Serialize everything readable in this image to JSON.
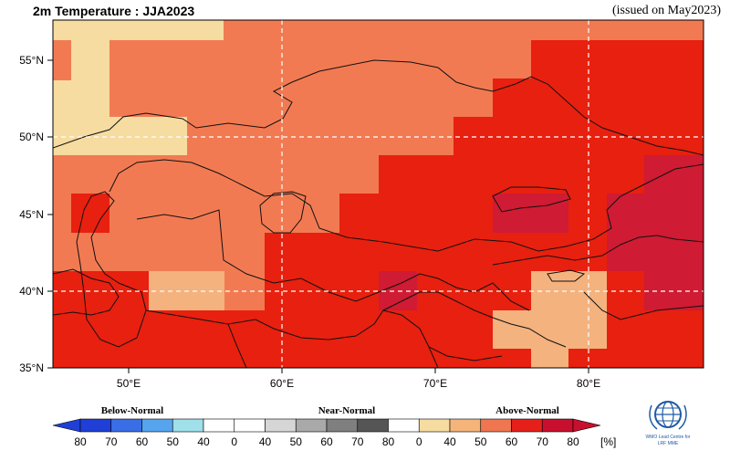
{
  "header": {
    "title": "2m Temperature : JJA2023",
    "issued": "(issued on May2023)"
  },
  "axes": {
    "lat_labels": [
      "55°N",
      "50°N",
      "45°N",
      "40°N",
      "35°N"
    ],
    "lon_labels": [
      "50°E",
      "60°E",
      "70°E",
      "80°E"
    ]
  },
  "legend": {
    "categories": [
      "Below-Normal",
      "Near-Normal",
      "Above-Normal"
    ],
    "tick_labels": [
      "80",
      "70",
      "60",
      "50",
      "40",
      "0",
      "40",
      "50",
      "60",
      "70",
      "80",
      "0",
      "40",
      "50",
      "60",
      "70",
      "80"
    ],
    "unit": "[%]",
    "colors": [
      "#1f3fd6",
      "#3a6ee6",
      "#57a4ee",
      "#9fe0ea",
      "#ffffff",
      "#ffffff",
      "#d6d6d6",
      "#a9a9a9",
      "#7f7f7f",
      "#555555",
      "#ffffff",
      "#f6dca0",
      "#f4b47a",
      "#ef7650",
      "#e5201a",
      "#c8102e"
    ]
  },
  "logo": {
    "text": "WMO Lead Centre for LRF MME"
  },
  "colors": {
    "above_70_80": "#e8200f",
    "above_60_70": "#f27a52",
    "above_50_60": "#f4b27e",
    "above_40_50": "#f6dca0",
    "above_80": "#cf1b33"
  },
  "map": {
    "extent": {
      "lon": [
        45,
        87
      ],
      "lat": [
        35,
        57
      ]
    },
    "grid": "dashed white"
  }
}
